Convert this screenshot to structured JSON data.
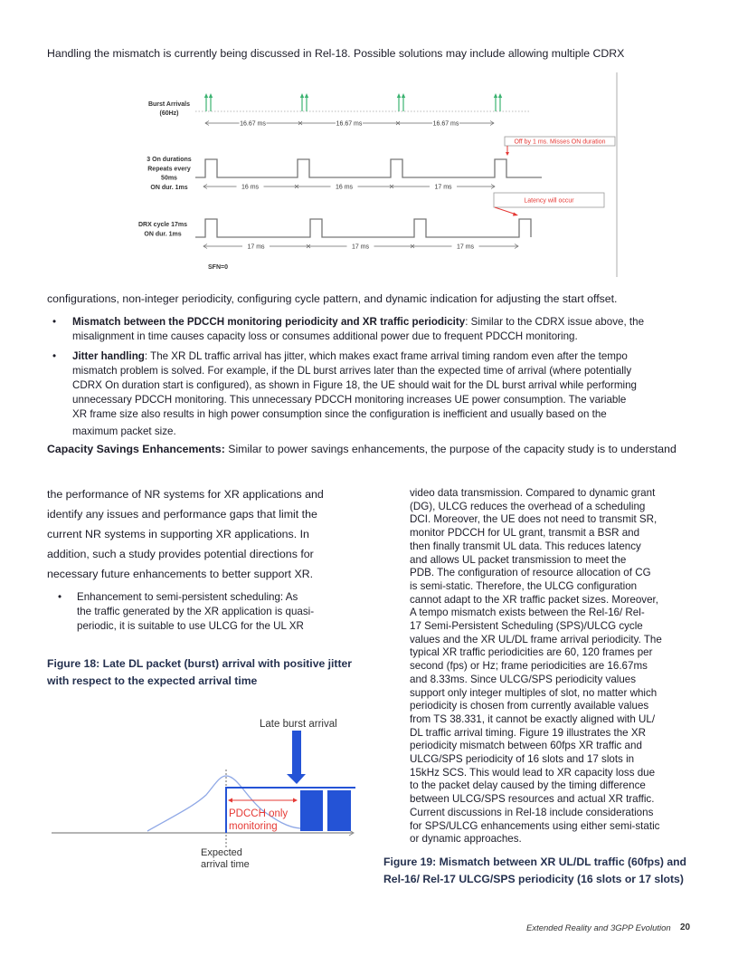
{
  "intro_line": "Handling the mismatch is currently being discussed in Rel-18. Possible solutions may include allowing multiple CDRX",
  "diagram_top": {
    "row1_label": [
      "Burst Arrivals",
      "(60Hz)"
    ],
    "row1_intervals": [
      "16.67 ms",
      "16.67 ms",
      "16.67 ms"
    ],
    "row2_label": [
      "3 On durations",
      "Repeats every",
      "50ms",
      "ON dur. 1ms"
    ],
    "row2_intervals": [
      "16 ms",
      "16 ms",
      "17 ms"
    ],
    "row3_label": [
      "DRX cycle 17ms",
      "ON dur. 1ms"
    ],
    "row3_intervals": [
      "17 ms",
      "17 ms",
      "17 ms"
    ],
    "note_off": "Off by 1 ms. Misses ON duration",
    "note_latency": "Latency will occur",
    "sfn": "SFN=0",
    "colors": {
      "arrival": "#3cb371",
      "note": "#e53935",
      "pulse": "#777777"
    }
  },
  "continuation_line": "configurations, non-integer periodicity, configuring cycle pattern, and dynamic indication for adjusting the start offset.",
  "bullets": [
    {
      "bold": "Mismatch between the PDCCH monitoring periodicity and XR traffic periodicity",
      "lines": [
        ": Similar to the CDRX issue above, the",
        "misalignment in time causes capacity loss or consumes additional power due to frequent PDCCH monitoring."
      ]
    },
    {
      "bold": "Jitter handling",
      "lines": [
        ": The XR DL traffic arrival has jitter, which makes exact frame arrival timing random even after the tempo",
        "mismatch problem is solved. For example, if the DL burst arrives later than the expected time of arrival (where potentially",
        "CDRX On duration start is configured), as shown in Figure 18, the UE should wait for the DL burst arrival while performing",
        "unnecessary PDCCH monitoring. This unnecessary PDCCH monitoring increases UE power consumption. The variable",
        "XR frame size also results in high power consumption since the configuration is inefficient and usually based on the",
        "maximum packet size."
      ]
    }
  ],
  "capacity_heading": "Capacity Savings Enhancements:",
  "capacity_text": " Similar to power savings enhancements, the purpose of the capacity study is to understand",
  "left_column": {
    "lines": [
      "the performance of NR systems for XR applications and",
      "identify any issues and performance gaps that limit the",
      "current NR systems in supporting XR applications. In",
      "addition, such a study provides potential directions for",
      "necessary future enhancements to better support XR."
    ],
    "bullet_lines": [
      "Enhancement to semi-persistent scheduling: As",
      "the traffic generated by the XR application is quasi-",
      "periodic, it is suitable to use ULCG for the UL XR"
    ]
  },
  "figure18_caption": [
    "Figure 18: Late DL packet (burst) arrival with positive jitter",
    "with respect to the expected arrival time"
  ],
  "diagram_jitter": {
    "late_label": "Late burst arrival",
    "pdcch_label": [
      "PDCCH only",
      "monitoring"
    ],
    "expected_label": [
      "Expected",
      "arrival time"
    ],
    "colors": {
      "blue": "#2453d6",
      "curve": "#8fa8e6",
      "red": "#e53935"
    }
  },
  "right_column": [
    "video data transmission. Compared to dynamic grant",
    "(DG), ULCG reduces the overhead of a scheduling",
    "DCI. Moreover, the UE does not need to transmit SR,",
    "monitor PDCCH for UL grant, transmit a BSR and",
    "then finally transmit UL data. This reduces latency",
    "and allows UL packet transmission to meet the",
    "PDB. The configuration of resource allocation of CG",
    "is semi-static. Therefore, the ULCG configuration",
    "cannot adapt to the XR traffic packet sizes. Moreover,",
    "A tempo mismatch exists between the Rel-16/ Rel-",
    "17 Semi-Persistent Scheduling (SPS)/ULCG cycle",
    "values and the XR UL/DL frame arrival periodicity. The",
    "typical XR traffic periodicities are 60, 120 frames per",
    "second (fps) or Hz; frame periodicities are 16.67ms",
    "and 8.33ms. Since ULCG/SPS periodicity values",
    "support only integer multiples of slot, no matter which",
    "periodicity is chosen from currently available values",
    "from TS 38.331, it cannot be exactly aligned with UL/",
    "DL traffic arrival timing. Figure 19 illustrates the XR",
    "periodicity mismatch between 60fps XR traffic and",
    "ULCG/SPS periodicity of 16 slots and 17 slots in",
    "15kHz SCS. This would lead to XR capacity loss due",
    "to the packet delay caused by the timing difference",
    "between ULCG/SPS resources and actual XR traffic.",
    "Current discussions in Rel-18 include considerations",
    "for SPS/ULCG enhancements using either semi-static",
    "or dynamic approaches."
  ],
  "figure19_caption": [
    "Figure 19: Mismatch between XR UL/DL traffic (60fps) and",
    "Rel-16/ Rel-17 ULCG/SPS periodicity (16 slots or 17 slots)"
  ],
  "footer": {
    "title": "Extended Reality and 3GPP Evolution",
    "page": "20"
  }
}
